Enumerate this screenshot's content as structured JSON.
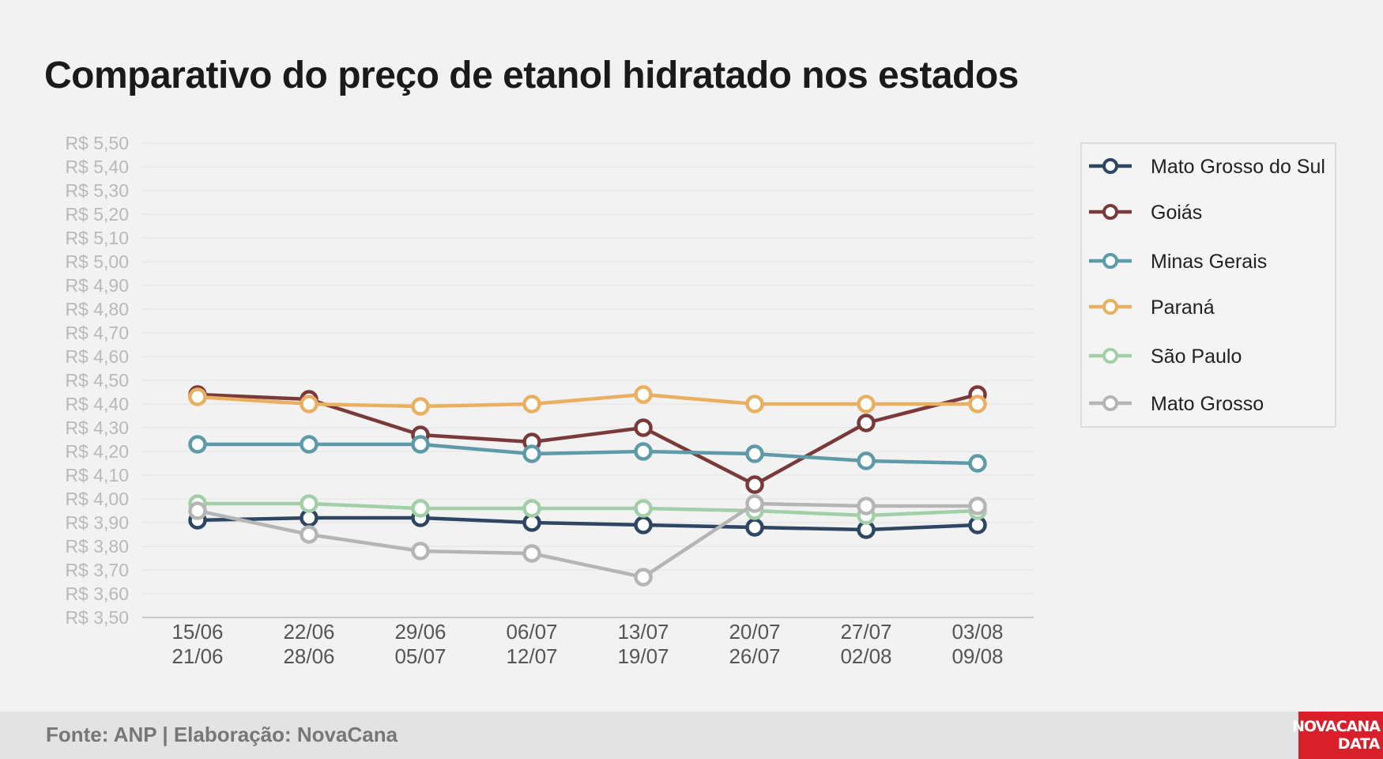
{
  "title": "Comparativo do preço de etanol hidratado nos estados",
  "footer": {
    "source": "Fonte: ANP | Elaboração: NovaCana",
    "logo_line1": "NOVACANA",
    "logo_line2": "DATA"
  },
  "chart_data": {
    "type": "line",
    "title": "Comparativo do preço de etanol hidratado nos estados",
    "xlabel": "",
    "ylabel": "",
    "ylim": [
      3.5,
      5.5
    ],
    "yticks": [
      "R$ 3,50",
      "R$ 3,60",
      "R$ 3,70",
      "R$ 3,80",
      "R$ 3,90",
      "R$ 4,00",
      "R$ 4,10",
      "R$ 4,20",
      "R$ 4,30",
      "R$ 4,40",
      "R$ 4,50",
      "R$ 4,60",
      "R$ 4,70",
      "R$ 4,80",
      "R$ 4,90",
      "R$ 5,00",
      "R$ 5,10",
      "R$ 5,20",
      "R$ 5,30",
      "R$ 5,40",
      "R$ 5,50"
    ],
    "categories": [
      [
        "15/06",
        "21/06"
      ],
      [
        "22/06",
        "28/06"
      ],
      [
        "29/06",
        "05/07"
      ],
      [
        "06/07",
        "12/07"
      ],
      [
        "13/07",
        "19/07"
      ],
      [
        "20/07",
        "26/07"
      ],
      [
        "27/07",
        "02/08"
      ],
      [
        "03/08",
        "09/08"
      ]
    ],
    "grid": true,
    "legend": "right",
    "series": [
      {
        "name": "Mato Grosso do Sul",
        "color": "#2e4661",
        "values": [
          3.91,
          3.92,
          3.92,
          3.9,
          3.89,
          3.88,
          3.87,
          3.89
        ]
      },
      {
        "name": "Goiás",
        "color": "#7b3a3a",
        "values": [
          4.44,
          4.42,
          4.27,
          4.24,
          4.3,
          4.06,
          4.32,
          4.44
        ]
      },
      {
        "name": "Minas Gerais",
        "color": "#5f9aa8",
        "values": [
          4.23,
          4.23,
          4.23,
          4.19,
          4.2,
          4.19,
          4.16,
          4.15
        ]
      },
      {
        "name": "Paraná",
        "color": "#e9b062",
        "values": [
          4.43,
          4.4,
          4.39,
          4.4,
          4.44,
          4.4,
          4.4,
          4.4
        ]
      },
      {
        "name": "São Paulo",
        "color": "#a2cfa8",
        "values": [
          3.98,
          3.98,
          3.96,
          3.96,
          3.96,
          3.95,
          3.93,
          3.95
        ]
      },
      {
        "name": "Mato Grosso",
        "color": "#b5b5b5",
        "values": [
          3.95,
          3.85,
          3.78,
          3.77,
          3.67,
          3.98,
          3.97,
          3.97
        ]
      }
    ]
  }
}
